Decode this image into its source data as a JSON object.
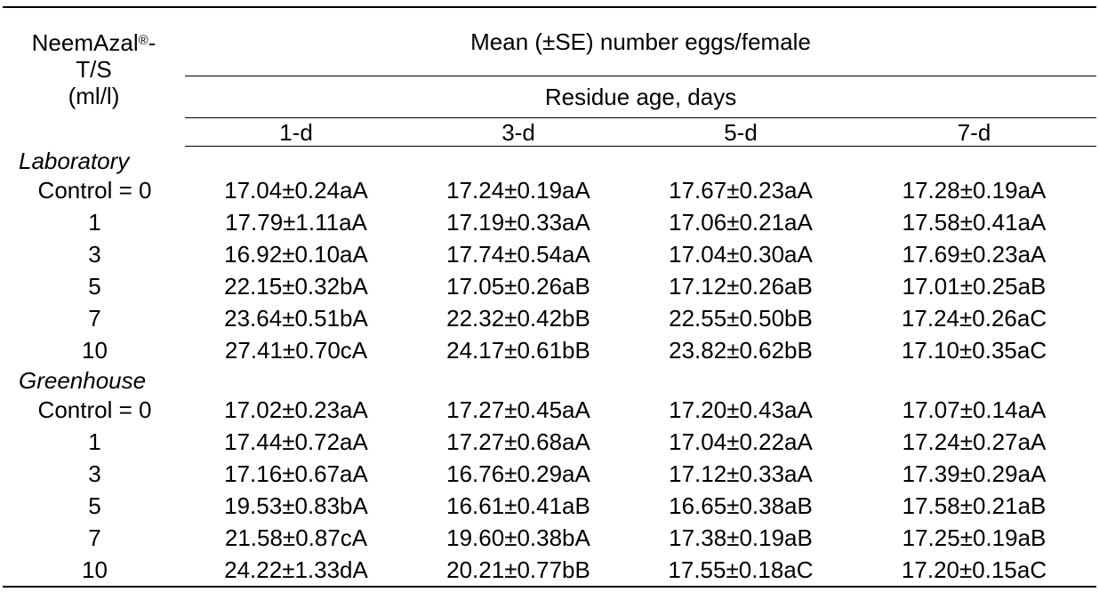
{
  "header": {
    "treatment_line1": "NeemAzal",
    "treatment_mark": "®",
    "treatment_line1_suffix": "-",
    "treatment_line2": "T/S",
    "treatment_line3": "(ml/l)",
    "mean_label": "Mean (±SE) number eggs/female",
    "residue_label": "Residue age, days",
    "columns": [
      "1-d",
      "3-d",
      "5-d",
      "7-d"
    ]
  },
  "sections": [
    {
      "title": "Laboratory",
      "rows": [
        {
          "level": "Control = 0",
          "values": [
            "17.04±0.24aA",
            "17.24±0.19aA",
            "17.67±0.23aA",
            "17.28±0.19aA"
          ]
        },
        {
          "level": "1",
          "values": [
            "17.79±1.11aA",
            "17.19±0.33aA",
            "17.06±0.21aA",
            "17.58±0.41aA"
          ]
        },
        {
          "level": "3",
          "values": [
            "16.92±0.10aA",
            "17.74±0.54aA",
            "17.04±0.30aA",
            "17.69±0.23aA"
          ]
        },
        {
          "level": "5",
          "values": [
            "22.15±0.32bA",
            "17.05±0.26aB",
            "17.12±0.26aB",
            "17.01±0.25aB"
          ]
        },
        {
          "level": "7",
          "values": [
            "23.64±0.51bA",
            "22.32±0.42bB",
            "22.55±0.50bB",
            "17.24±0.26aC"
          ]
        },
        {
          "level": "10",
          "values": [
            "27.41±0.70cA",
            "24.17±0.61bB",
            "23.82±0.62bB",
            "17.10±0.35aC"
          ]
        }
      ]
    },
    {
      "title": "Greenhouse",
      "rows": [
        {
          "level": "Control = 0",
          "values": [
            "17.02±0.23aA",
            "17.27±0.45aA",
            "17.20±0.43aA",
            "17.07±0.14aA"
          ]
        },
        {
          "level": "1",
          "values": [
            "17.44±0.72aA",
            "17.27±0.68aA",
            "17.04±0.22aA",
            "17.24±0.27aA"
          ]
        },
        {
          "level": "3",
          "values": [
            "17.16±0.67aA",
            "16.76±0.29aA",
            "17.12±0.33aA",
            "17.39±0.29aA"
          ]
        },
        {
          "level": "5",
          "values": [
            "19.53±0.83bA",
            "16.61±0.41aB",
            "16.65±0.38aB",
            "17.58±0.21aB"
          ]
        },
        {
          "level": "7",
          "values": [
            "21.58±0.87cA",
            "19.60±0.38bA",
            "17.38±0.19aB",
            "17.25±0.19aB"
          ]
        },
        {
          "level": "10",
          "values": [
            "24.22±1.33dA",
            "20.21±0.77bB",
            "17.55±0.18aC",
            "17.20±0.15aC"
          ]
        }
      ]
    }
  ]
}
